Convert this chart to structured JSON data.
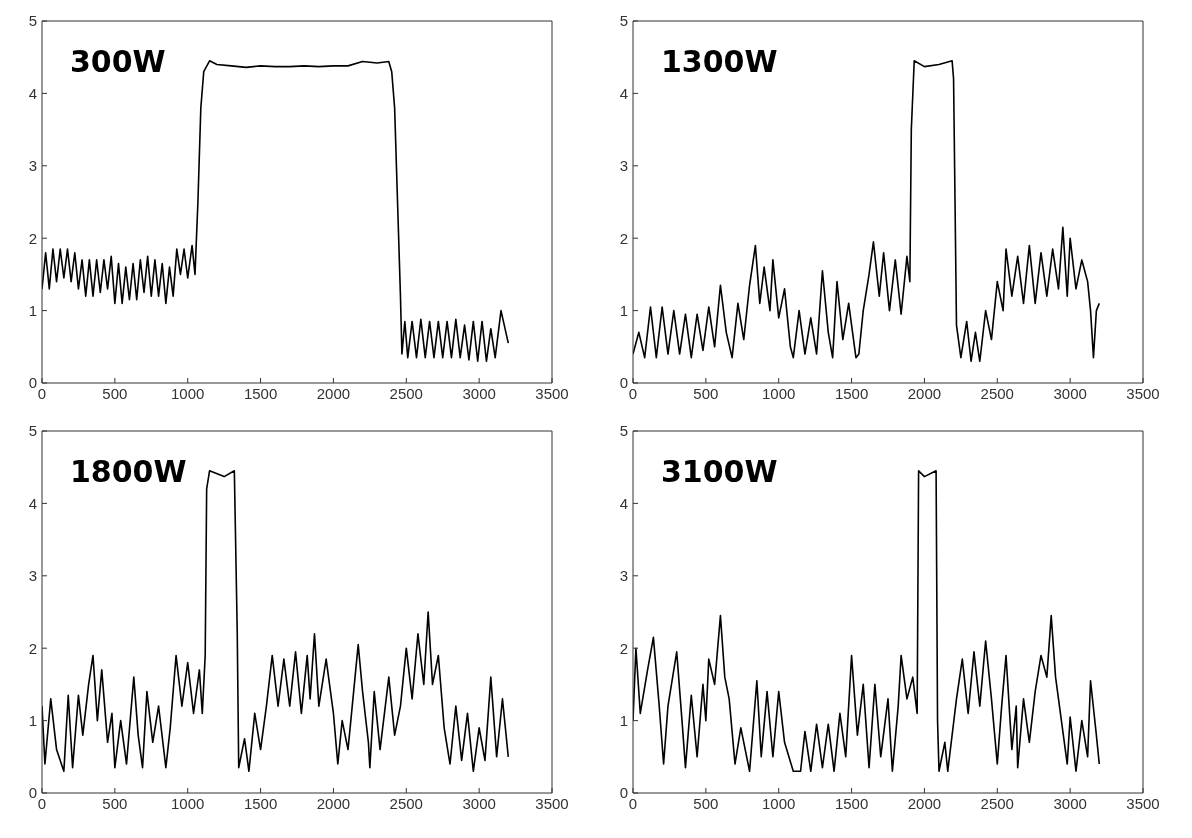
{
  "chart_data": [
    {
      "type": "line",
      "annotations": [
        "300W"
      ],
      "xlim": [
        0,
        3500
      ],
      "xticks": [
        0,
        500,
        1000,
        1500,
        2000,
        2500,
        3000,
        3500
      ],
      "ylim": [
        0,
        5
      ],
      "yticks": [
        0,
        1,
        2,
        3,
        4,
        5
      ],
      "marker": "none",
      "line_style": "solid",
      "series": [
        {
          "color": "#000000",
          "x": [
            0,
            25,
            50,
            75,
            100,
            125,
            150,
            175,
            200,
            225,
            250,
            275,
            300,
            325,
            350,
            375,
            400,
            425,
            450,
            475,
            500,
            525,
            550,
            575,
            600,
            625,
            650,
            675,
            700,
            725,
            750,
            775,
            800,
            825,
            850,
            875,
            900,
            925,
            950,
            975,
            1000,
            1030,
            1050,
            1070,
            1090,
            1110,
            1150,
            1200,
            1300,
            1400,
            1500,
            1600,
            1700,
            1800,
            1900,
            2000,
            2100,
            2200,
            2300,
            2380,
            2400,
            2420,
            2440,
            2460,
            2470,
            2490,
            2510,
            2540,
            2570,
            2600,
            2630,
            2660,
            2690,
            2720,
            2750,
            2780,
            2810,
            2840,
            2870,
            2900,
            2930,
            2960,
            2990,
            3020,
            3050,
            3080,
            3110,
            3150,
            3200
          ],
          "values": [
            1.3,
            1.8,
            1.3,
            1.85,
            1.4,
            1.85,
            1.45,
            1.85,
            1.4,
            1.8,
            1.3,
            1.7,
            1.2,
            1.7,
            1.2,
            1.7,
            1.25,
            1.7,
            1.3,
            1.75,
            1.1,
            1.65,
            1.1,
            1.6,
            1.15,
            1.65,
            1.15,
            1.7,
            1.25,
            1.75,
            1.2,
            1.7,
            1.2,
            1.65,
            1.1,
            1.6,
            1.2,
            1.85,
            1.5,
            1.85,
            1.45,
            1.9,
            1.5,
            2.5,
            3.8,
            4.3,
            4.45,
            4.4,
            4.38,
            4.36,
            4.38,
            4.37,
            4.37,
            4.38,
            4.37,
            4.38,
            4.38,
            4.44,
            4.42,
            4.44,
            4.3,
            3.8,
            2.5,
            1.2,
            0.4,
            0.85,
            0.35,
            0.85,
            0.35,
            0.88,
            0.35,
            0.85,
            0.35,
            0.85,
            0.35,
            0.85,
            0.35,
            0.88,
            0.35,
            0.8,
            0.32,
            0.85,
            0.3,
            0.85,
            0.3,
            0.75,
            0.35,
            1.0,
            0.55
          ]
        }
      ]
    },
    {
      "type": "line",
      "annotations": [
        "1300W"
      ],
      "xlim": [
        0,
        3500
      ],
      "xticks": [
        0,
        500,
        1000,
        1500,
        2000,
        2500,
        3000,
        3500
      ],
      "ylim": [
        0,
        5
      ],
      "yticks": [
        0,
        1,
        2,
        3,
        4,
        5
      ],
      "marker": "none",
      "line_style": "solid",
      "series": [
        {
          "color": "#000000",
          "x": [
            0,
            40,
            80,
            120,
            160,
            200,
            240,
            280,
            320,
            360,
            400,
            440,
            480,
            520,
            560,
            600,
            640,
            680,
            720,
            760,
            800,
            840,
            870,
            900,
            940,
            960,
            1000,
            1040,
            1080,
            1100,
            1140,
            1180,
            1220,
            1260,
            1300,
            1340,
            1370,
            1400,
            1440,
            1480,
            1530,
            1550,
            1580,
            1620,
            1650,
            1690,
            1720,
            1760,
            1800,
            1840,
            1880,
            1900,
            1910,
            1930,
            2000,
            2100,
            2190,
            2200,
            2210,
            2220,
            2250,
            2290,
            2320,
            2350,
            2380,
            2420,
            2460,
            2500,
            2540,
            2560,
            2600,
            2640,
            2680,
            2720,
            2760,
            2800,
            2840,
            2880,
            2920,
            2950,
            2980,
            3000,
            3040,
            3080,
            3120,
            3140,
            3160,
            3180,
            3200
          ],
          "values": [
            0.4,
            0.7,
            0.35,
            1.05,
            0.35,
            1.05,
            0.4,
            1.0,
            0.4,
            0.95,
            0.35,
            0.95,
            0.45,
            1.05,
            0.5,
            1.35,
            0.7,
            0.35,
            1.1,
            0.6,
            1.35,
            1.9,
            1.1,
            1.6,
            1.0,
            1.7,
            0.9,
            1.3,
            0.5,
            0.35,
            1.0,
            0.4,
            0.9,
            0.4,
            1.55,
            0.7,
            0.35,
            1.4,
            0.6,
            1.1,
            0.35,
            0.4,
            1.0,
            1.5,
            1.95,
            1.2,
            1.8,
            1.0,
            1.7,
            0.95,
            1.75,
            1.4,
            3.5,
            4.45,
            4.37,
            4.4,
            4.45,
            4.2,
            2.5,
            0.8,
            0.35,
            0.85,
            0.3,
            0.7,
            0.3,
            1.0,
            0.6,
            1.4,
            1.0,
            1.85,
            1.2,
            1.75,
            1.1,
            1.9,
            1.1,
            1.8,
            1.2,
            1.85,
            1.3,
            2.15,
            1.2,
            2.0,
            1.3,
            1.7,
            1.4,
            1.0,
            0.35,
            1.0,
            1.1
          ]
        }
      ]
    },
    {
      "type": "line",
      "annotations": [
        "1800W"
      ],
      "xlim": [
        0,
        3500
      ],
      "xticks": [
        0,
        500,
        1000,
        1500,
        2000,
        2500,
        3000,
        3500
      ],
      "ylim": [
        0,
        5
      ],
      "yticks": [
        0,
        1,
        2,
        3,
        4,
        5
      ],
      "marker": "none",
      "line_style": "solid",
      "series": [
        {
          "color": "#000000",
          "x": [
            0,
            20,
            60,
            100,
            150,
            180,
            210,
            250,
            280,
            320,
            350,
            380,
            410,
            450,
            480,
            500,
            540,
            580,
            630,
            660,
            690,
            720,
            760,
            800,
            850,
            880,
            920,
            960,
            1000,
            1040,
            1080,
            1100,
            1120,
            1130,
            1150,
            1250,
            1320,
            1340,
            1350,
            1390,
            1420,
            1460,
            1500,
            1540,
            1580,
            1620,
            1660,
            1700,
            1740,
            1780,
            1820,
            1840,
            1870,
            1900,
            1950,
            2000,
            2030,
            2060,
            2100,
            2170,
            2200,
            2240,
            2250,
            2280,
            2320,
            2380,
            2420,
            2460,
            2500,
            2540,
            2580,
            2620,
            2650,
            2680,
            2720,
            2760,
            2800,
            2840,
            2880,
            2920,
            2960,
            3000,
            3040,
            3080,
            3120,
            3160,
            3200
          ],
          "values": [
            1.2,
            0.4,
            1.3,
            0.6,
            0.3,
            1.35,
            0.35,
            1.35,
            0.8,
            1.5,
            1.9,
            1.0,
            1.7,
            0.7,
            1.1,
            0.35,
            1.0,
            0.4,
            1.6,
            0.8,
            0.35,
            1.4,
            0.7,
            1.2,
            0.35,
            0.9,
            1.9,
            1.2,
            1.8,
            1.1,
            1.7,
            1.1,
            1.9,
            4.2,
            4.45,
            4.37,
            4.45,
            2.2,
            0.35,
            0.75,
            0.3,
            1.1,
            0.6,
            1.2,
            1.9,
            1.2,
            1.85,
            1.2,
            1.95,
            1.1,
            1.9,
            1.3,
            2.2,
            1.2,
            1.85,
            1.1,
            0.4,
            1.0,
            0.6,
            2.05,
            1.4,
            0.7,
            0.35,
            1.4,
            0.6,
            1.6,
            0.8,
            1.2,
            2.0,
            1.3,
            2.2,
            1.5,
            2.5,
            1.5,
            1.9,
            0.9,
            0.4,
            1.2,
            0.45,
            1.1,
            0.3,
            0.9,
            0.45,
            1.6,
            0.5,
            1.3,
            0.5
          ]
        }
      ]
    },
    {
      "type": "line",
      "annotations": [
        "3100W"
      ],
      "xlim": [
        0,
        3500
      ],
      "xticks": [
        0,
        500,
        1000,
        1500,
        2000,
        2500,
        3000,
        3500
      ],
      "ylim": [
        0,
        5
      ],
      "yticks": [
        0,
        1,
        2,
        3,
        4,
        5
      ],
      "marker": "none",
      "line_style": "solid",
      "series": [
        {
          "color": "#000000",
          "x": [
            0,
            20,
            50,
            100,
            140,
            180,
            210,
            240,
            300,
            340,
            360,
            400,
            440,
            480,
            500,
            520,
            560,
            600,
            630,
            660,
            700,
            740,
            800,
            850,
            880,
            920,
            960,
            1000,
            1040,
            1100,
            1150,
            1180,
            1220,
            1260,
            1300,
            1340,
            1380,
            1420,
            1460,
            1500,
            1540,
            1580,
            1620,
            1660,
            1700,
            1750,
            1780,
            1820,
            1840,
            1880,
            1920,
            1950,
            1960,
            2000,
            2080,
            2090,
            2100,
            2140,
            2160,
            2220,
            2260,
            2300,
            2340,
            2380,
            2420,
            2460,
            2500,
            2530,
            2560,
            2600,
            2630,
            2640,
            2680,
            2720,
            2760,
            2800,
            2840,
            2870,
            2900,
            2940,
            2980,
            3000,
            3040,
            3080,
            3120,
            3140,
            3180,
            3200
          ],
          "values": [
            1.0,
            2.0,
            1.1,
            1.7,
            2.15,
            1.2,
            0.4,
            1.2,
            1.95,
            0.9,
            0.35,
            1.35,
            0.5,
            1.5,
            1.0,
            1.85,
            1.5,
            2.45,
            1.6,
            1.3,
            0.4,
            0.9,
            0.3,
            1.55,
            0.5,
            1.4,
            0.5,
            1.4,
            0.7,
            0.3,
            0.3,
            0.85,
            0.3,
            0.95,
            0.35,
            0.95,
            0.3,
            1.1,
            0.5,
            1.9,
            0.8,
            1.5,
            0.35,
            1.5,
            0.5,
            1.3,
            0.3,
            1.2,
            1.9,
            1.3,
            1.6,
            1.1,
            4.45,
            4.37,
            4.45,
            1.0,
            0.3,
            0.7,
            0.3,
            1.3,
            1.85,
            1.1,
            1.95,
            1.2,
            2.1,
            1.3,
            0.4,
            1.2,
            1.9,
            0.6,
            1.2,
            0.35,
            1.3,
            0.7,
            1.4,
            1.9,
            1.6,
            2.45,
            1.6,
            1.0,
            0.4,
            1.05,
            0.3,
            1.0,
            0.5,
            1.55,
            0.8,
            0.4
          ]
        }
      ]
    }
  ]
}
